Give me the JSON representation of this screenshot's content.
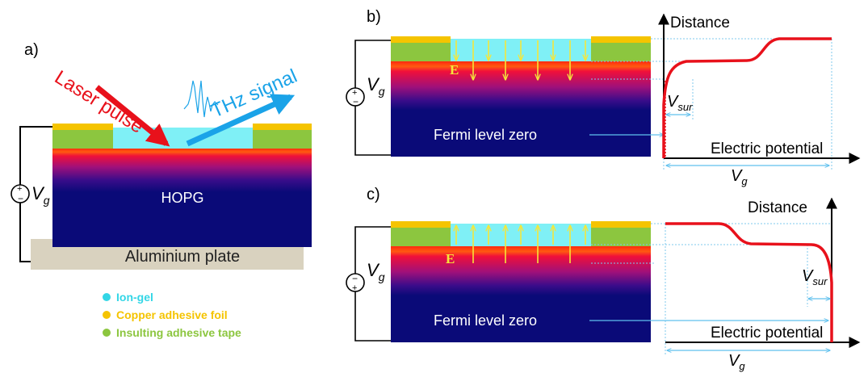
{
  "panel_a": {
    "label": "a)",
    "laser_label": "Laser pulse",
    "thz_label": "THz signal",
    "substrate_label": "HOPG",
    "plate_label": "Aluminium plate",
    "voltage": {
      "main": "V",
      "sub": "g"
    },
    "legend": [
      {
        "text": "Ion-gel",
        "color": "#33d6e6"
      },
      {
        "text": "Copper adhesive foil",
        "color": "#f5c400"
      },
      {
        "text": "Insulting adhesive tape",
        "color": "#8cc63f"
      }
    ]
  },
  "panel_b": {
    "label": "b)",
    "field_label": "E",
    "fermi_label": "Fermi level zero",
    "y_axis_label": "Distance",
    "x_axis_label": "Electric potential",
    "vsur": {
      "main": "V",
      "sub": "sur"
    },
    "vg": {
      "main": "V",
      "sub": "g"
    },
    "voltage": {
      "main": "V",
      "sub": "g"
    }
  },
  "panel_c": {
    "label": "c)",
    "field_label": "E",
    "fermi_label": "Fermi level zero",
    "y_axis_label": "Distance",
    "x_axis_label": "Electric potential",
    "vsur": {
      "main": "V",
      "sub": "sur"
    },
    "vg": {
      "main": "V",
      "sub": "g"
    },
    "voltage": {
      "main": "V",
      "sub": "g"
    }
  },
  "colors": {
    "hopg": "#0a0a78",
    "ion_gel": "#7ff0f6",
    "copper": "#f5c400",
    "tape": "#8cc63f",
    "plate": "#d9d2bf",
    "laser": "#e8111b",
    "thz": "#1aa3e8",
    "potential": "#e8111b",
    "field_arrow": "#f5e63a",
    "dotted": "#7fc8ee"
  }
}
